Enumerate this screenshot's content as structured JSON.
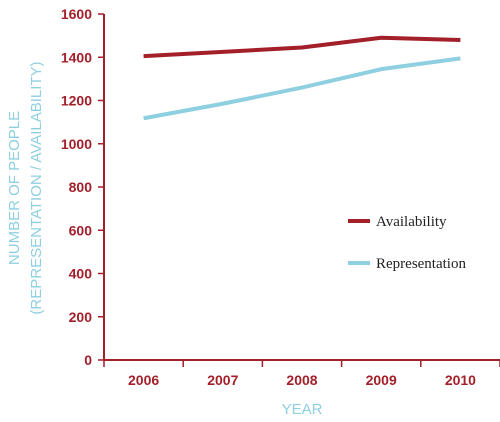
{
  "chart_data": {
    "type": "line",
    "title": "",
    "xlabel": "YEAR",
    "ylabel": [
      "NUMBER OF PEOPLE",
      "(REPRESENTATION / AVAILABILITY)"
    ],
    "categories": [
      "2006",
      "2007",
      "2008",
      "2009",
      "2010"
    ],
    "ylim": [
      0,
      1600
    ],
    "yticks": [
      "0",
      "200",
      "400",
      "600",
      "800",
      "1000",
      "1200",
      "1400",
      "1600"
    ],
    "grid": false,
    "legend_position": "center-right",
    "series": [
      {
        "name": "Availability",
        "values": [
          1405,
          1425,
          1445,
          1490,
          1480
        ],
        "color": "#a31f2a"
      },
      {
        "name": "Representation",
        "values": [
          1118,
          1185,
          1260,
          1345,
          1395
        ],
        "color": "#8ecfe0"
      }
    ],
    "colors": {
      "axis": "#a31f2a",
      "label": "#8ecfe0"
    }
  }
}
